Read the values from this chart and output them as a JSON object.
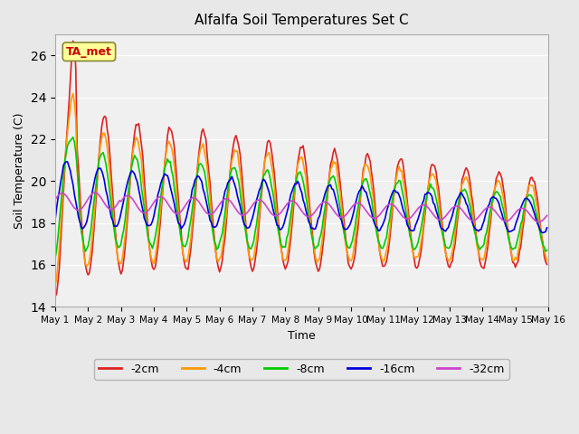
{
  "title": "Alfalfa Soil Temperatures Set C",
  "xlabel": "Time",
  "ylabel": "Soil Temperature (C)",
  "ylim": [
    14,
    27
  ],
  "yticks": [
    14,
    16,
    18,
    20,
    22,
    24,
    26
  ],
  "bg_color": "#e8e8e8",
  "plot_bg_color": "#f0f0f0",
  "legend_label": "TA_met",
  "series_colors": {
    "-2cm": "#dd2222",
    "-4cm": "#ff9900",
    "-8cm": "#00cc00",
    "-16cm": "#0000dd",
    "-32cm": "#cc44cc"
  },
  "series_order": [
    "-2cm",
    "-4cm",
    "-8cm",
    "-16cm",
    "-32cm"
  ],
  "n_days": 15
}
